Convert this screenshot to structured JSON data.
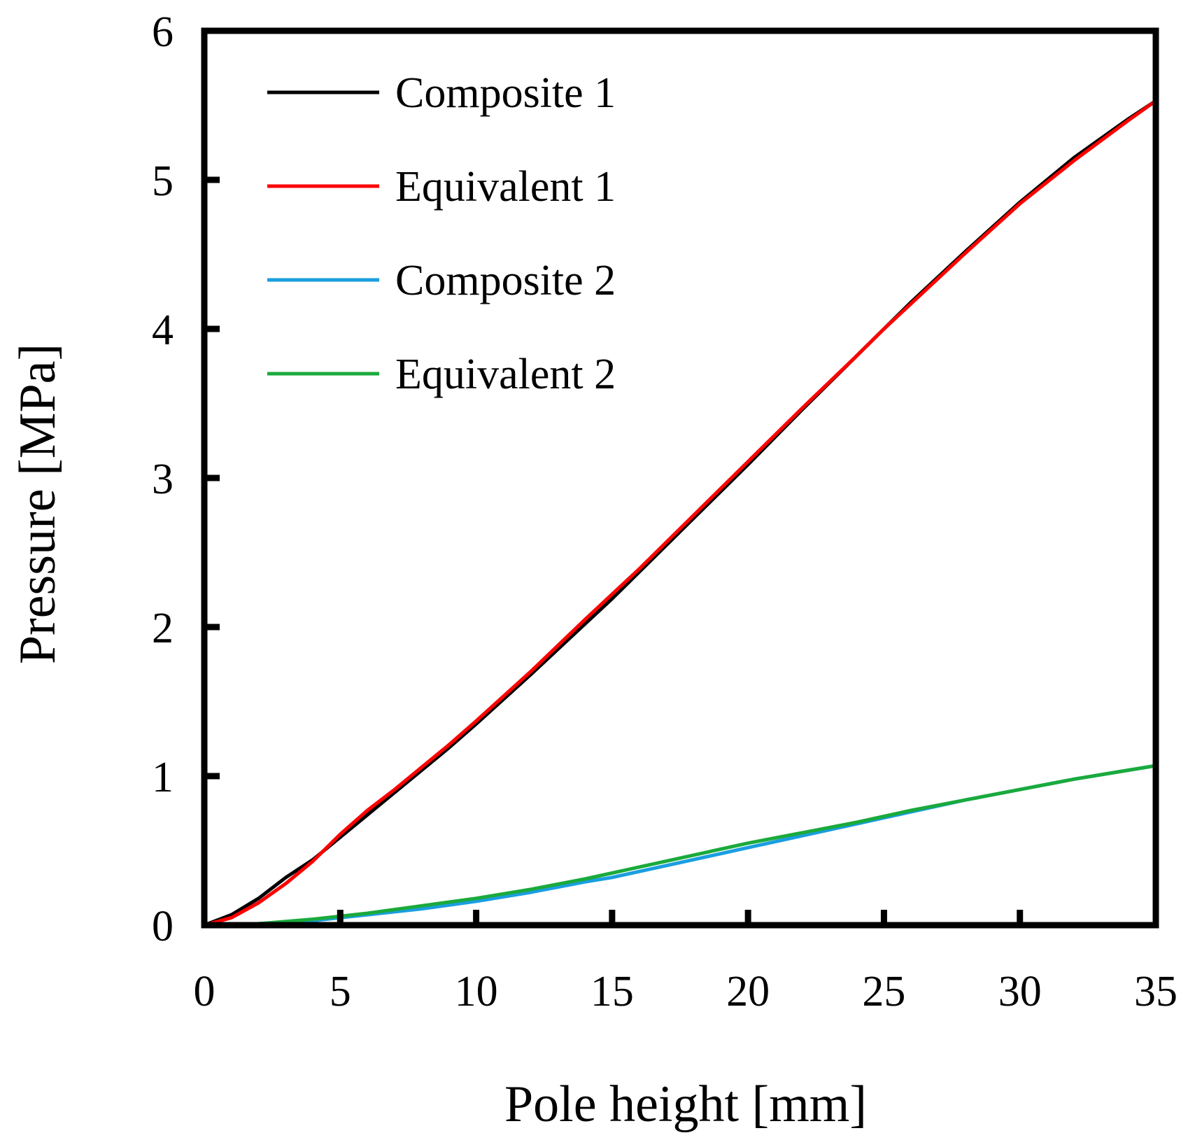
{
  "chart_data": {
    "type": "line",
    "title": "",
    "xlabel": "Pole height [mm]",
    "ylabel": "Pressure [MPa]",
    "xlim": [
      0,
      35
    ],
    "ylim": [
      0,
      6
    ],
    "xticks": [
      "0",
      "5",
      "10",
      "15",
      "20",
      "25",
      "30",
      "35"
    ],
    "yticks": [
      "0",
      "1",
      "2",
      "3",
      "4",
      "5",
      "6"
    ],
    "grid": false,
    "legend_position": "top-left",
    "series": [
      {
        "name": "Composite 1",
        "color": "#000000",
        "x": [
          0,
          1,
          2,
          3,
          4,
          5,
          6,
          7,
          8,
          9,
          10,
          12,
          14,
          15,
          16,
          18,
          20,
          22,
          24,
          25,
          26,
          28,
          30,
          32,
          34,
          35
        ],
        "y": [
          0,
          0.07,
          0.18,
          0.32,
          0.44,
          0.59,
          0.74,
          0.89,
          1.04,
          1.19,
          1.35,
          1.68,
          2.02,
          2.19,
          2.37,
          2.73,
          3.09,
          3.46,
          3.82,
          4.0,
          4.18,
          4.52,
          4.85,
          5.15,
          5.41,
          5.53
        ]
      },
      {
        "name": "Equivalent 1",
        "color": "#ff0000",
        "x": [
          0,
          1,
          2,
          3,
          4,
          5,
          6,
          7,
          8,
          9,
          10,
          12,
          14,
          15,
          16,
          18,
          20,
          22,
          24,
          25,
          26,
          28,
          30,
          32,
          34,
          35
        ],
        "y": [
          0,
          0.05,
          0.15,
          0.28,
          0.43,
          0.61,
          0.77,
          0.91,
          1.06,
          1.21,
          1.37,
          1.7,
          2.05,
          2.22,
          2.39,
          2.75,
          3.11,
          3.47,
          3.82,
          4.0,
          4.17,
          4.51,
          4.84,
          5.13,
          5.4,
          5.53
        ]
      },
      {
        "name": "Composite 2",
        "color": "#1a9ee0",
        "x": [
          0,
          2,
          4,
          5,
          6,
          8,
          10,
          12,
          14,
          15,
          16,
          18,
          20,
          22,
          24,
          25,
          26,
          28,
          30,
          32,
          34,
          35
        ],
        "y": [
          0,
          0.01,
          0.03,
          0.05,
          0.07,
          0.11,
          0.16,
          0.22,
          0.29,
          0.32,
          0.36,
          0.44,
          0.52,
          0.6,
          0.68,
          0.72,
          0.76,
          0.84,
          0.91,
          0.98,
          1.04,
          1.07
        ]
      },
      {
        "name": "Equivalent 2",
        "color": "#1aaa3c",
        "x": [
          0,
          2,
          4,
          5,
          6,
          8,
          10,
          12,
          14,
          15,
          16,
          18,
          20,
          22,
          24,
          25,
          26,
          28,
          30,
          32,
          34,
          35
        ],
        "y": [
          0,
          0.01,
          0.04,
          0.06,
          0.08,
          0.13,
          0.18,
          0.24,
          0.31,
          0.35,
          0.39,
          0.47,
          0.55,
          0.62,
          0.69,
          0.73,
          0.77,
          0.84,
          0.91,
          0.98,
          1.04,
          1.07
        ]
      }
    ]
  }
}
